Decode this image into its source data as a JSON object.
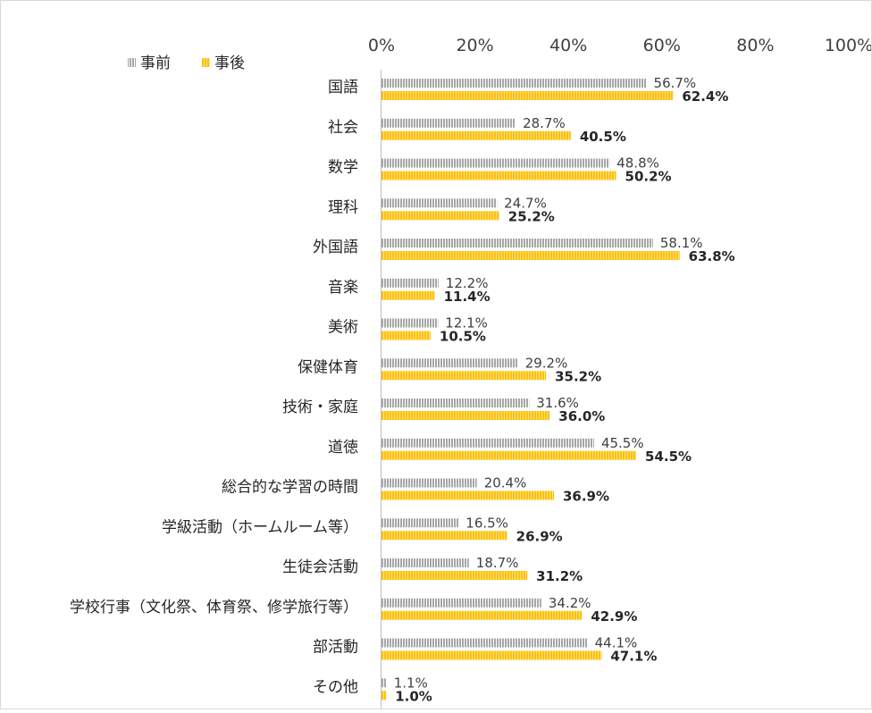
{
  "chart_data": {
    "type": "bar",
    "orientation": "horizontal",
    "categories": [
      "国語",
      "社会",
      "数学",
      "理科",
      "外国語",
      "音楽",
      "美術",
      "保健体育",
      "技術・家庭",
      "道徳",
      "総合的な学習の時間",
      "学級活動（ホームルーム等）",
      "生徒会活動",
      "学校行事（文化祭、体育祭、修学旅行等）",
      "部活動",
      "その他"
    ],
    "series": [
      {
        "name": "事前",
        "color": "#a6a6a6",
        "values": [
          56.7,
          28.7,
          48.8,
          24.7,
          58.1,
          12.2,
          12.1,
          29.2,
          31.6,
          45.5,
          20.4,
          16.5,
          18.7,
          34.2,
          44.1,
          1.1
        ],
        "labels": [
          "56.7%",
          "28.7%",
          "48.8%",
          "24.7%",
          "58.1%",
          "12.2%",
          "12.1%",
          "29.2%",
          "31.6%",
          "45.5%",
          "20.4%",
          "16.5%",
          "18.7%",
          "34.2%",
          "44.1%",
          "1.1%"
        ]
      },
      {
        "name": "事後",
        "color": "#ffc000",
        "values": [
          62.4,
          40.5,
          50.2,
          25.2,
          63.8,
          11.4,
          10.5,
          35.2,
          36.0,
          54.5,
          36.9,
          26.9,
          31.2,
          42.9,
          47.1,
          1.0
        ],
        "labels": [
          "62.4%",
          "40.5%",
          "50.2%",
          "25.2%",
          "63.8%",
          "11.4%",
          "10.5%",
          "35.2%",
          "36.0%",
          "54.5%",
          "36.9%",
          "26.9%",
          "31.2%",
          "42.9%",
          "47.1%",
          "1.0%"
        ]
      }
    ],
    "xlim": [
      0,
      100
    ],
    "x_ticks": [
      "0%",
      "20%",
      "40%",
      "60%",
      "80%",
      "100%"
    ],
    "x_axis_position": "top",
    "grid": false,
    "legend_position": "top-left"
  }
}
